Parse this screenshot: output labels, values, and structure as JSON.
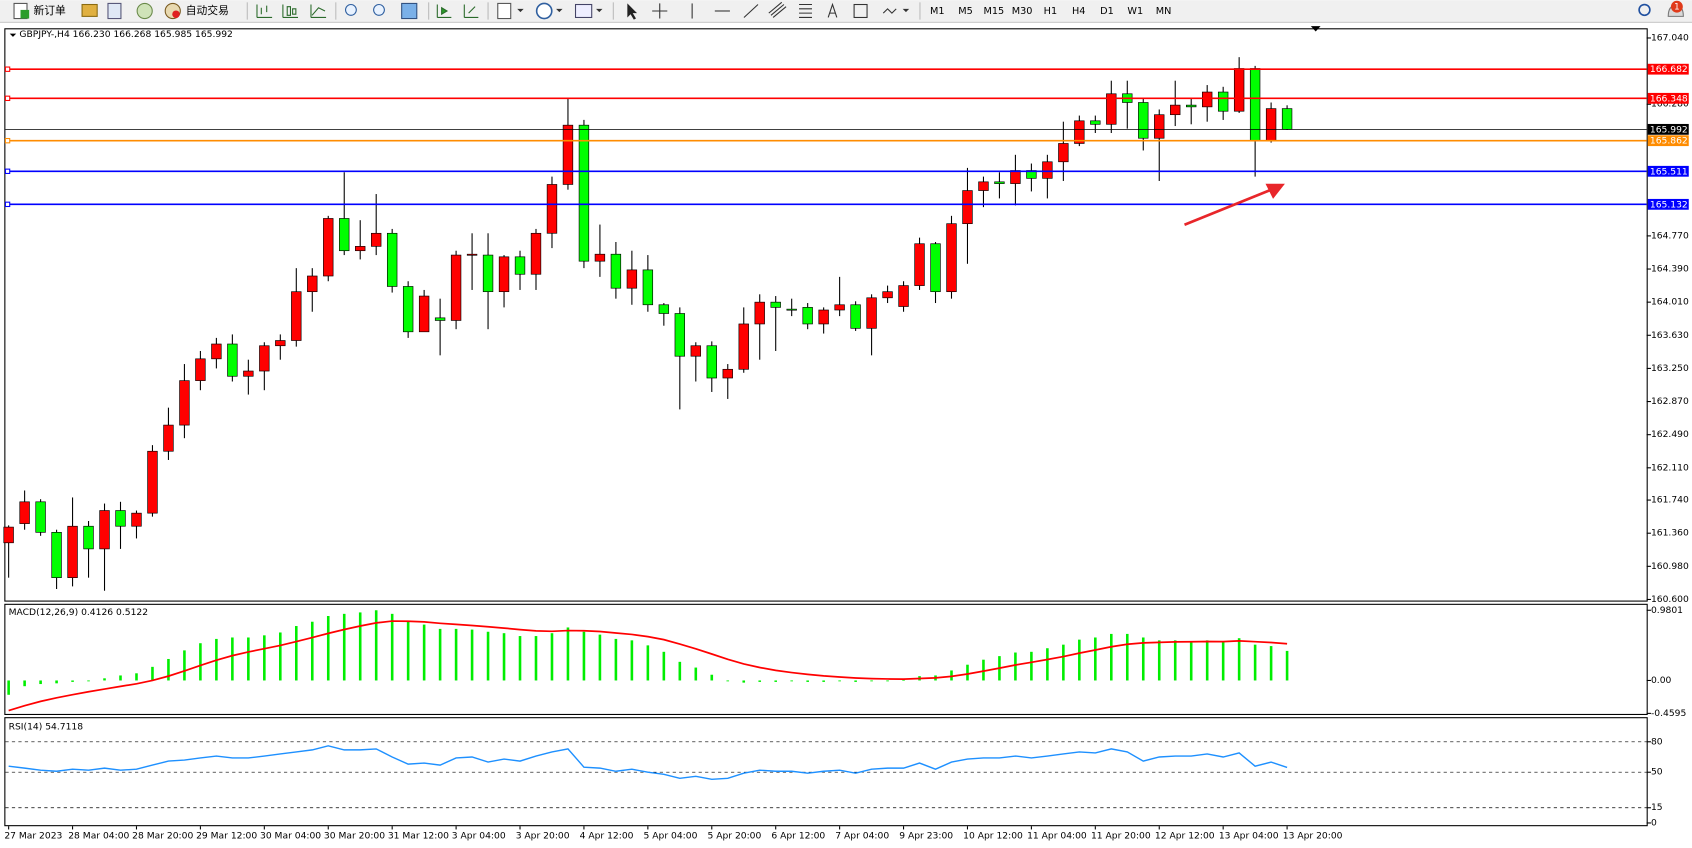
{
  "toolbar": {
    "new_order": "新订单",
    "auto_trading": "自动交易",
    "timeframes": [
      "M1",
      "M5",
      "M15",
      "M30",
      "H1",
      "H4",
      "D1",
      "W1",
      "MN"
    ]
  },
  "chart_data": [
    {
      "type": "candlestick",
      "title": "GBPJPY-,H4 166.230 166.268 165.985 165.992",
      "categories": [
        "27 Mar 2023",
        null,
        null,
        null,
        "28 Mar 04:00",
        null,
        null,
        null,
        "28 Mar 20:00",
        null,
        null,
        null,
        "29 Mar 12:00",
        null,
        null,
        null,
        "30 Mar 04:00",
        null,
        null,
        null,
        "30 Mar 20:00",
        null,
        null,
        null,
        "31 Mar 12:00",
        null,
        null,
        null,
        "3 Apr 04:00",
        null,
        null,
        null,
        "3 Apr 20:00",
        null,
        null,
        null,
        "4 Apr 12:00",
        null,
        null,
        null,
        "5 Apr 04:00",
        null,
        null,
        null,
        "5 Apr 20:00",
        null,
        null,
        null,
        "6 Apr 12:00",
        null,
        null,
        null,
        "7 Apr 04:00",
        null,
        null,
        null,
        "9 Apr 23:00",
        null,
        null,
        null,
        "10 Apr 12:00",
        null,
        null,
        null,
        "11 Apr 04:00",
        null,
        null,
        null,
        "11 Apr 20:00",
        null,
        null,
        null,
        "12 Apr 12:00",
        null,
        null,
        null,
        "13 Apr 04:00",
        null,
        null,
        null,
        "13 Apr 20:00"
      ],
      "open": [
        161.25,
        161.47,
        161.72,
        161.37,
        160.85,
        161.44,
        161.18,
        161.62,
        161.44,
        161.59,
        162.3,
        162.6,
        163.11,
        163.36,
        163.53,
        163.16,
        163.22,
        163.51,
        163.57,
        164.13,
        164.31,
        164.97,
        164.6,
        164.65,
        164.8,
        164.19,
        163.67,
        163.83,
        163.8,
        164.55,
        164.55,
        164.13,
        164.53,
        164.33,
        164.8,
        165.36,
        166.04,
        164.48,
        164.56,
        164.17,
        164.38,
        163.98,
        163.88,
        163.39,
        163.51,
        163.14,
        163.24,
        163.76,
        164.01,
        163.93,
        163.95,
        163.76,
        163.92,
        163.98,
        163.71,
        164.06,
        163.96,
        164.2,
        164.68,
        164.13,
        164.91,
        165.29,
        165.39,
        165.37,
        165.52,
        165.43,
        165.62,
        165.83,
        166.09,
        166.05,
        166.4,
        166.3,
        165.89,
        166.16,
        166.27,
        166.25,
        166.42,
        166.2,
        166.69,
        165.86,
        166.23
      ],
      "high": [
        161.45,
        161.85,
        161.75,
        161.4,
        161.77,
        161.5,
        161.7,
        161.72,
        161.62,
        162.37,
        162.8,
        163.3,
        163.45,
        163.6,
        163.64,
        163.35,
        163.55,
        163.64,
        164.4,
        164.4,
        165.0,
        165.5,
        164.95,
        165.25,
        164.85,
        164.25,
        164.15,
        164.05,
        164.6,
        164.8,
        164.8,
        164.55,
        164.6,
        164.85,
        165.45,
        166.35,
        166.1,
        164.9,
        164.7,
        164.6,
        164.55,
        164.0,
        163.95,
        163.55,
        163.56,
        163.3,
        163.95,
        164.1,
        164.08,
        164.05,
        164.0,
        163.95,
        164.3,
        164.02,
        164.1,
        164.2,
        164.25,
        164.75,
        164.7,
        165.0,
        165.55,
        165.45,
        165.5,
        165.7,
        165.6,
        165.7,
        166.08,
        166.15,
        166.15,
        166.55,
        166.55,
        166.35,
        166.22,
        166.55,
        166.35,
        166.5,
        166.48,
        166.82,
        166.72,
        166.3,
        166.268
      ],
      "low": [
        160.85,
        161.4,
        161.33,
        160.72,
        160.75,
        160.85,
        160.7,
        161.18,
        161.3,
        161.55,
        162.2,
        162.45,
        163.0,
        163.25,
        163.1,
        162.95,
        163.0,
        163.35,
        163.5,
        163.9,
        164.25,
        164.55,
        164.5,
        164.55,
        164.12,
        163.6,
        163.7,
        163.4,
        163.7,
        164.15,
        163.7,
        163.95,
        164.15,
        164.15,
        164.63,
        165.3,
        164.4,
        164.3,
        164.05,
        163.98,
        163.9,
        163.74,
        162.78,
        163.1,
        162.98,
        162.9,
        163.2,
        163.35,
        163.45,
        163.85,
        163.7,
        163.65,
        163.85,
        163.68,
        163.4,
        164.0,
        163.9,
        164.15,
        164.0,
        164.05,
        164.45,
        165.1,
        165.2,
        165.12,
        165.28,
        165.2,
        165.4,
        165.8,
        165.95,
        165.95,
        166.0,
        165.75,
        165.4,
        166.03,
        166.05,
        166.08,
        166.1,
        166.18,
        165.45,
        165.84,
        165.985
      ],
      "close": [
        161.43,
        161.72,
        161.37,
        160.85,
        161.44,
        161.18,
        161.62,
        161.44,
        161.59,
        162.3,
        162.6,
        163.11,
        163.36,
        163.53,
        163.16,
        163.22,
        163.51,
        163.57,
        164.13,
        164.31,
        164.97,
        164.6,
        164.65,
        164.8,
        164.19,
        163.67,
        164.08,
        163.8,
        164.55,
        164.56,
        164.13,
        164.53,
        164.33,
        164.8,
        165.36,
        166.04,
        164.48,
        164.56,
        164.17,
        164.38,
        163.98,
        163.88,
        163.39,
        163.51,
        163.14,
        163.24,
        163.76,
        164.01,
        163.95,
        163.92,
        163.76,
        163.92,
        163.98,
        163.71,
        164.06,
        164.13,
        164.2,
        164.68,
        164.13,
        164.91,
        165.29,
        165.39,
        165.37,
        165.52,
        165.43,
        165.62,
        165.83,
        166.09,
        166.05,
        166.4,
        166.3,
        165.89,
        166.16,
        166.27,
        166.25,
        166.42,
        166.2,
        166.69,
        165.86,
        166.23,
        165.992
      ],
      "up_color": "#ff0000",
      "down_color": "#00ff00",
      "ylim": [
        160.6,
        167.04
      ],
      "yticks": [
        {
          "value": 167.04,
          "label": "167.040"
        },
        {
          "value": 166.28,
          "label": "166.280"
        },
        {
          "value": 164.77,
          "label": "164.770"
        },
        {
          "value": 164.39,
          "label": "164.390"
        },
        {
          "value": 164.01,
          "label": "164.010"
        },
        {
          "value": 163.63,
          "label": "163.630"
        },
        {
          "value": 163.25,
          "label": "163.250"
        },
        {
          "value": 162.87,
          "label": "162.870"
        },
        {
          "value": 162.49,
          "label": "162.490"
        },
        {
          "value": 162.11,
          "label": "162.110"
        },
        {
          "value": 161.74,
          "label": "161.740"
        },
        {
          "value": 161.36,
          "label": "161.360"
        },
        {
          "value": 160.98,
          "label": "160.980"
        },
        {
          "value": 160.6,
          "label": "160.600"
        }
      ],
      "levels": [
        {
          "value": 166.682,
          "color": "#ff0000"
        },
        {
          "value": 166.348,
          "color": "#ff0000"
        },
        {
          "value": 165.992,
          "color": "#000000"
        },
        {
          "value": 165.862,
          "color": "#ff8c00"
        },
        {
          "value": 165.511,
          "color": "#0000ff"
        },
        {
          "value": 165.132,
          "color": "#0000ff"
        }
      ]
    },
    {
      "type": "macd",
      "title": "MACD(12,26,9) 0.4126 0.5122",
      "histogram": {
        "color": "#00ee00",
        "values": [
          -0.2,
          -0.08,
          -0.05,
          -0.04,
          -0.02,
          0.0,
          0.03,
          0.07,
          0.1,
          0.19,
          0.3,
          0.42,
          0.52,
          0.58,
          0.6,
          0.6,
          0.63,
          0.67,
          0.76,
          0.82,
          0.9,
          0.93,
          0.95,
          0.98,
          0.93,
          0.82,
          0.78,
          0.72,
          0.72,
          0.71,
          0.68,
          0.66,
          0.62,
          0.62,
          0.66,
          0.74,
          0.68,
          0.64,
          0.58,
          0.56,
          0.49,
          0.4,
          0.26,
          0.18,
          0.08,
          0.0,
          -0.03,
          -0.02,
          -0.02,
          -0.01,
          -0.02,
          -0.02,
          -0.01,
          -0.02,
          -0.01,
          0.0,
          0.01,
          0.06,
          0.07,
          0.14,
          0.22,
          0.29,
          0.34,
          0.39,
          0.4,
          0.45,
          0.5,
          0.57,
          0.6,
          0.65,
          0.65,
          0.6,
          0.56,
          0.56,
          0.55,
          0.56,
          0.54,
          0.59,
          0.5,
          0.48,
          0.4126
        ]
      },
      "signal": {
        "color": "#ff0000",
        "values": [
          -0.42,
          -0.352,
          -0.292,
          -0.242,
          -0.198,
          -0.158,
          -0.12,
          -0.082,
          -0.046,
          0.001,
          0.061,
          0.133,
          0.21,
          0.284,
          0.347,
          0.398,
          0.444,
          0.489,
          0.543,
          0.598,
          0.658,
          0.712,
          0.76,
          0.804,
          0.829,
          0.827,
          0.818,
          0.798,
          0.782,
          0.768,
          0.75,
          0.732,
          0.71,
          0.692,
          0.686,
          0.697,
          0.694,
          0.683,
          0.662,
          0.642,
          0.612,
          0.57,
          0.508,
          0.442,
          0.37,
          0.296,
          0.231,
          0.181,
          0.141,
          0.111,
          0.085,
          0.064,
          0.049,
          0.035,
          0.026,
          0.021,
          0.019,
          0.027,
          0.036,
          0.057,
          0.09,
          0.13,
          0.172,
          0.216,
          0.253,
          0.292,
          0.334,
          0.381,
          0.425,
          0.47,
          0.506,
          0.525,
          0.532,
          0.538,
          0.54,
          0.544,
          0.543,
          0.552,
          0.542,
          0.53,
          0.5122
        ]
      },
      "ylim": [
        -0.4595,
        0.9801
      ],
      "yticks": [
        0.9801,
        {
          "value": 0,
          "label": "0.00"
        },
        -0.4595
      ]
    },
    {
      "type": "rsi",
      "title": "RSI(14) 54.7118",
      "color": "#1e90ff",
      "values": [
        56,
        54,
        52,
        51,
        53,
        52,
        54,
        52,
        53,
        57,
        61,
        62,
        64,
        66,
        64,
        64,
        66,
        68,
        70,
        72,
        76,
        72,
        72,
        73,
        65,
        58,
        59,
        57,
        64,
        65,
        60,
        63,
        61,
        66,
        70,
        73,
        55,
        54,
        51,
        53,
        50,
        48,
        44,
        46,
        43,
        44,
        49,
        52,
        51,
        51,
        49,
        51,
        52,
        49,
        53,
        54,
        54,
        59,
        53,
        60,
        63,
        64,
        64,
        66,
        64,
        66,
        68,
        70,
        69,
        73,
        70,
        61,
        65,
        66,
        66,
        68,
        65,
        69,
        56,
        60,
        54.7118
      ],
      "ylim": [
        0,
        100
      ],
      "yticks": [
        80,
        50,
        15,
        0
      ],
      "grid": true
    }
  ]
}
